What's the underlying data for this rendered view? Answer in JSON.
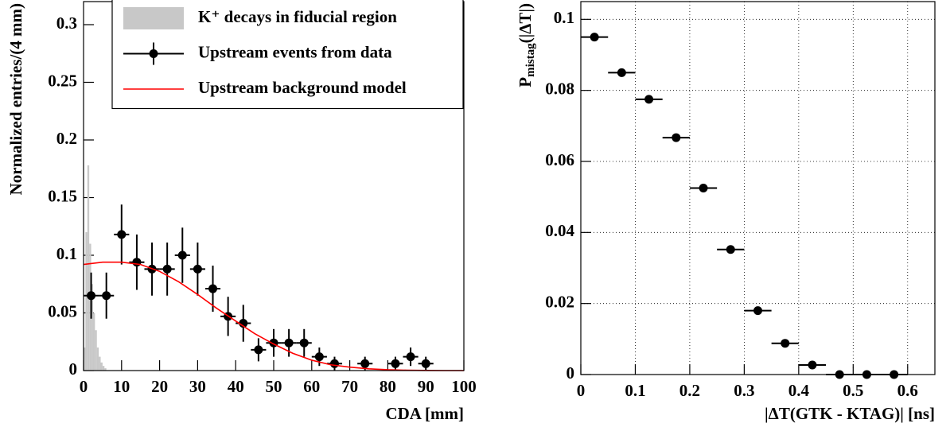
{
  "chart_data": [
    {
      "type": "mixed",
      "xlabel": "CDA [mm]",
      "ylabel": "Normalized entries/(4 mm)",
      "xlim": [
        0,
        100
      ],
      "ylim": [
        0,
        0.32
      ],
      "xticks": [
        0,
        10,
        20,
        30,
        40,
        50,
        60,
        70,
        80,
        90,
        100
      ],
      "yticks": [
        0,
        0.05,
        0.1,
        0.15,
        0.2,
        0.25,
        0.3
      ],
      "legend": "top-right",
      "series": [
        {
          "name": "K⁺ decays in fiducial region",
          "type": "histogram",
          "color": "#c8c8c8",
          "bins": [
            0,
            0.5,
            1,
            1.5,
            2,
            2.5,
            3,
            3.5,
            4,
            4.5,
            5,
            5.5,
            6
          ],
          "values": [
            0.02,
            0.12,
            0.178,
            0.11,
            0.075,
            0.05,
            0.035,
            0.02,
            0.012,
            0.007,
            0.004,
            0.002
          ]
        },
        {
          "name": "Upstream events from data",
          "type": "errorbar",
          "color": "#000000",
          "x": [
            2,
            6,
            10,
            14,
            18,
            22,
            26,
            30,
            34,
            38,
            42,
            46,
            50,
            54,
            58,
            62,
            66,
            74,
            82,
            86,
            90
          ],
          "values": [
            0.065,
            0.065,
            0.118,
            0.094,
            0.088,
            0.088,
            0.1,
            0.088,
            0.071,
            0.047,
            0.041,
            0.018,
            0.024,
            0.024,
            0.024,
            0.012,
            0.006,
            0.006,
            0.006,
            0.012,
            0.006
          ],
          "errors": [
            0.02,
            0.02,
            0.026,
            0.024,
            0.023,
            0.023,
            0.024,
            0.023,
            0.02,
            0.017,
            0.016,
            0.01,
            0.012,
            0.012,
            0.012,
            0.008,
            0.006,
            0.006,
            0.006,
            0.008,
            0.006
          ],
          "x_error": 2
        },
        {
          "name": "Upstream background model",
          "type": "line",
          "color": "#ff0000",
          "x": [
            0,
            5,
            10,
            15,
            20,
            25,
            30,
            35,
            40,
            45,
            50,
            55,
            60,
            65,
            70,
            75,
            80,
            85,
            90,
            95,
            100
          ],
          "values": [
            0.092,
            0.094,
            0.094,
            0.092,
            0.086,
            0.077,
            0.066,
            0.054,
            0.043,
            0.032,
            0.023,
            0.015,
            0.009,
            0.005,
            0.003,
            0.0015,
            0.0007,
            0.0003,
            0.0001,
            0,
            0
          ]
        }
      ]
    },
    {
      "type": "errorbar",
      "xlabel": "|ΔT(GTK - KTAG)| [ns]",
      "ylabel": "P",
      "ylabel_subscript": "mistag",
      "ylabel_suffix": "(|ΔT|)",
      "xlim": [
        0,
        0.65
      ],
      "ylim": [
        0,
        0.105
      ],
      "xticks": [
        0,
        0.1,
        0.2,
        0.3,
        0.4,
        0.5,
        0.6
      ],
      "yticks": [
        0,
        0.02,
        0.04,
        0.06,
        0.08,
        0.1
      ],
      "grid": true,
      "color": "#000000",
      "x": [
        0.025,
        0.075,
        0.125,
        0.175,
        0.225,
        0.275,
        0.325,
        0.375,
        0.425,
        0.475,
        0.525,
        0.575
      ],
      "values": [
        0.095,
        0.085,
        0.0775,
        0.0667,
        0.0525,
        0.0352,
        0.018,
        0.0088,
        0.0027,
        0,
        0,
        0
      ],
      "x_error": 0.025
    }
  ]
}
